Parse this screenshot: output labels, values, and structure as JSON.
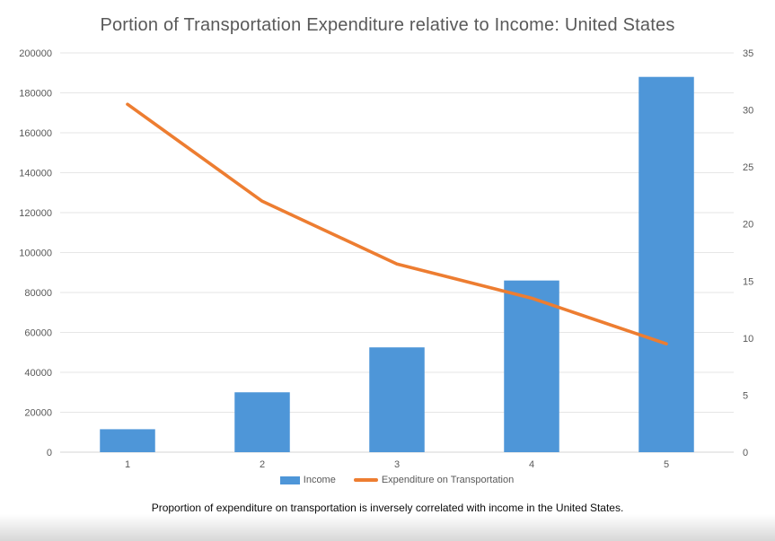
{
  "title": "Portion of Transportation Expenditure relative to Income: United States",
  "caption": "Proportion of expenditure on transportation is inversely correlated with income in the United States.",
  "legend": {
    "items": [
      {
        "label": "Income",
        "swatch": "bar"
      },
      {
        "label": "Expenditure on Transportation",
        "swatch": "line"
      }
    ]
  },
  "colors": {
    "bar": "#4E96D8",
    "line": "#ED7D31",
    "gridline": "#E6E6E6",
    "axis_line": "#D6D6D6",
    "tick_text": "#595959",
    "title_text": "#595959",
    "caption_text": "#0B0B0B"
  },
  "chart_data": {
    "type": "bar",
    "subtype": "combo-bar-line",
    "title": "Portion of Transportation Expenditure relative to Income: United States",
    "categories": [
      "1",
      "2",
      "3",
      "4",
      "5"
    ],
    "series": [
      {
        "name": "Income",
        "type": "bar",
        "axis": "left",
        "color": "#4E96D8",
        "values": [
          11500,
          30000,
          52500,
          86000,
          188000
        ]
      },
      {
        "name": "Expenditure on Transportation",
        "type": "line",
        "axis": "right",
        "color": "#ED7D31",
        "values": [
          30.5,
          22,
          16.5,
          13.5,
          9.5
        ]
      }
    ],
    "xlabel": "",
    "left_axis": {
      "label": "",
      "min": 0,
      "max": 200000,
      "step": 20000,
      "ticks": [
        "0",
        "20000",
        "40000",
        "60000",
        "80000",
        "100000",
        "120000",
        "140000",
        "160000",
        "180000",
        "200000"
      ]
    },
    "right_axis": {
      "label": "",
      "min": 0,
      "max": 35,
      "step": 5,
      "ticks": [
        "0",
        "5",
        "10",
        "15",
        "20",
        "25",
        "30",
        "35"
      ]
    },
    "grid": true,
    "legend_position": "bottom"
  }
}
